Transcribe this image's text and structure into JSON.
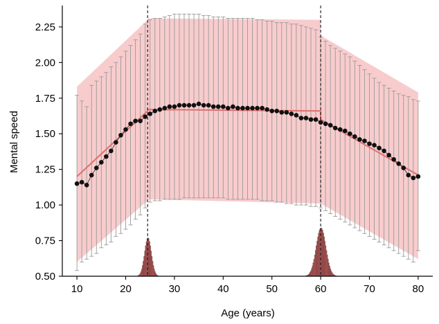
{
  "chart_data": {
    "type": "scatter",
    "xlabel": "Age (years)",
    "ylabel": "Mental speed",
    "xlim": [
      7,
      83
    ],
    "ylim": [
      0.5,
      2.4
    ],
    "xticks": [
      10,
      20,
      30,
      40,
      50,
      60,
      70,
      80
    ],
    "yticks": [
      0.5,
      0.75,
      1.0,
      1.25,
      1.5,
      1.75,
      2.0,
      2.25
    ],
    "ytick_labels": [
      "0.50",
      "0.75",
      "1.00",
      "1.25",
      "1.50",
      "1.75",
      "2.00",
      "2.25"
    ],
    "grid": false,
    "changepoints": [
      24.5,
      60
    ],
    "points": {
      "x": [
        10,
        11,
        12,
        13,
        14,
        15,
        16,
        17,
        18,
        19,
        20,
        21,
        22,
        23,
        24,
        25,
        26,
        27,
        28,
        29,
        30,
        31,
        32,
        33,
        34,
        35,
        36,
        37,
        38,
        39,
        40,
        41,
        42,
        43,
        44,
        45,
        46,
        47,
        48,
        49,
        50,
        51,
        52,
        53,
        54,
        55,
        56,
        57,
        58,
        59,
        60,
        61,
        62,
        63,
        64,
        65,
        66,
        67,
        68,
        69,
        70,
        71,
        72,
        73,
        74,
        75,
        76,
        77,
        78,
        79,
        80
      ],
      "y": [
        1.15,
        1.16,
        1.14,
        1.21,
        1.26,
        1.3,
        1.34,
        1.38,
        1.44,
        1.49,
        1.53,
        1.57,
        1.59,
        1.59,
        1.62,
        1.64,
        1.66,
        1.67,
        1.68,
        1.69,
        1.69,
        1.7,
        1.7,
        1.7,
        1.7,
        1.71,
        1.7,
        1.7,
        1.69,
        1.69,
        1.69,
        1.68,
        1.69,
        1.68,
        1.68,
        1.68,
        1.68,
        1.68,
        1.68,
        1.67,
        1.66,
        1.66,
        1.65,
        1.65,
        1.64,
        1.63,
        1.61,
        1.61,
        1.6,
        1.6,
        1.58,
        1.57,
        1.56,
        1.54,
        1.53,
        1.52,
        1.5,
        1.48,
        1.46,
        1.45,
        1.43,
        1.42,
        1.4,
        1.38,
        1.35,
        1.32,
        1.29,
        1.26,
        1.21,
        1.19,
        1.2
      ]
    },
    "fitted_line": {
      "x": [
        10,
        24.5,
        24.5,
        60,
        60,
        80
      ],
      "y": [
        1.2,
        1.66,
        1.67,
        1.66,
        1.6,
        1.21
      ]
    },
    "band_lower": {
      "x": [
        10,
        24.5,
        24.5,
        60,
        60,
        80
      ],
      "y": [
        0.6,
        1.03,
        1.04,
        1.01,
        1.01,
        0.62
      ]
    },
    "band_upper": {
      "x": [
        10,
        24.5,
        24.5,
        60,
        60,
        80
      ],
      "y": [
        1.83,
        2.3,
        2.31,
        2.3,
        2.19,
        1.79
      ]
    },
    "error_bars": {
      "x": [
        10,
        11,
        12,
        13,
        14,
        15,
        16,
        17,
        18,
        19,
        20,
        21,
        22,
        23,
        24,
        25,
        26,
        27,
        28,
        29,
        30,
        31,
        32,
        33,
        34,
        35,
        36,
        37,
        38,
        39,
        40,
        41,
        42,
        43,
        44,
        45,
        46,
        47,
        48,
        49,
        50,
        51,
        52,
        53,
        54,
        55,
        56,
        57,
        58,
        59,
        60,
        61,
        62,
        63,
        64,
        65,
        66,
        67,
        68,
        69,
        70,
        71,
        72,
        73,
        74,
        75,
        76,
        77,
        78,
        79,
        80
      ],
      "lower": [
        0.54,
        0.6,
        0.62,
        0.64,
        0.66,
        0.7,
        0.72,
        0.74,
        0.78,
        0.8,
        0.83,
        0.86,
        0.9,
        0.93,
        0.98,
        1.02,
        1.03,
        1.03,
        1.04,
        1.04,
        1.04,
        1.04,
        1.05,
        1.05,
        1.05,
        1.05,
        1.05,
        1.05,
        1.05,
        1.05,
        1.05,
        1.04,
        1.04,
        1.04,
        1.04,
        1.04,
        1.04,
        1.04,
        1.03,
        1.03,
        1.03,
        1.02,
        1.02,
        1.01,
        1.01,
        1.0,
        1.0,
        1.0,
        0.99,
        0.99,
        0.98,
        0.96,
        0.94,
        0.92,
        0.9,
        0.88,
        0.86,
        0.84,
        0.82,
        0.8,
        0.78,
        0.76,
        0.74,
        0.72,
        0.7,
        0.68,
        0.66,
        0.64,
        0.62,
        0.6,
        0.68
      ],
      "upper": [
        1.77,
        1.73,
        1.69,
        1.84,
        1.87,
        1.9,
        1.93,
        1.97,
        2.0,
        2.04,
        2.08,
        2.12,
        2.16,
        2.2,
        2.27,
        2.3,
        2.31,
        2.31,
        2.32,
        2.33,
        2.34,
        2.34,
        2.34,
        2.34,
        2.34,
        2.34,
        2.33,
        2.33,
        2.32,
        2.32,
        2.32,
        2.31,
        2.31,
        2.31,
        2.31,
        2.31,
        2.31,
        2.3,
        2.3,
        2.29,
        2.29,
        2.28,
        2.28,
        2.28,
        2.27,
        2.27,
        2.26,
        2.25,
        2.24,
        2.23,
        2.18,
        2.15,
        2.12,
        2.1,
        2.08,
        2.06,
        2.04,
        2.01,
        1.98,
        1.95,
        1.92,
        1.89,
        1.86,
        1.84,
        1.82,
        1.8,
        1.78,
        1.77,
        1.76,
        1.74,
        1.73
      ]
    },
    "histograms": [
      {
        "center": 24.5,
        "peak": 0.77,
        "width": 0.7
      },
      {
        "center": 60,
        "peak": 0.84,
        "width": 1.0
      }
    ],
    "colors": {
      "band": "#f8cccc",
      "fitted_line": "#e07070",
      "points": "#111111",
      "connect_line": "#222222",
      "error_bar": "#999999",
      "histogram": "#b35a5a",
      "changepoint_line": "#111111"
    }
  }
}
